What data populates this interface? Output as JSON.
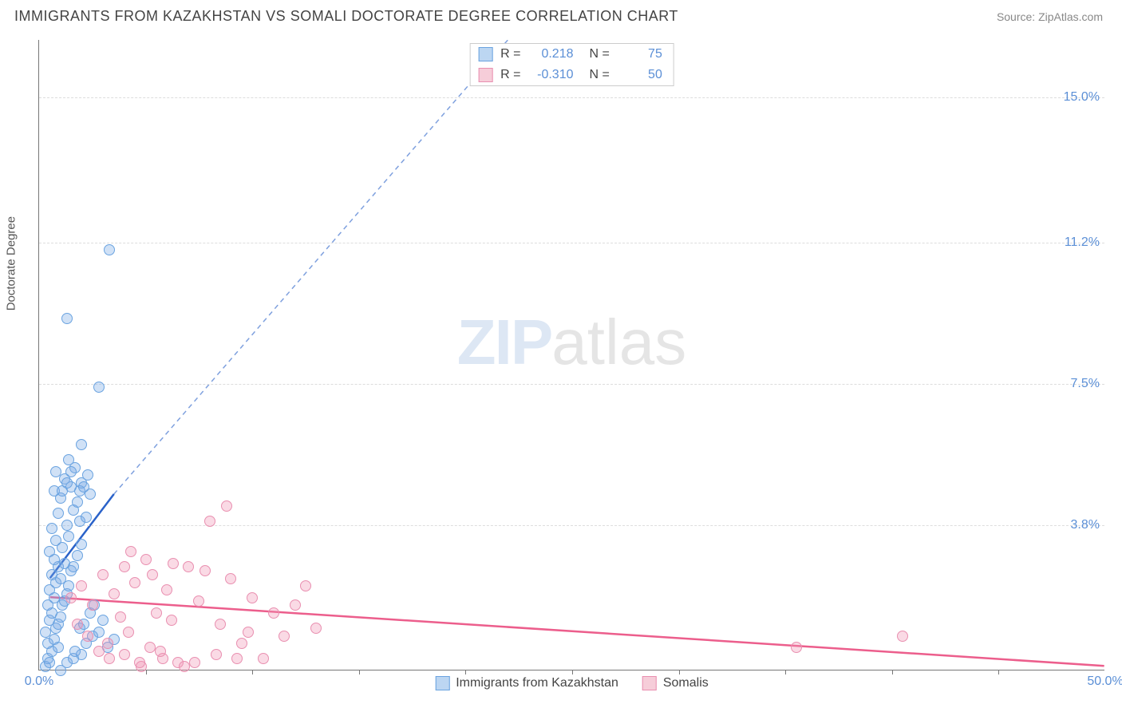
{
  "title": "IMMIGRANTS FROM KAZAKHSTAN VS SOMALI DOCTORATE DEGREE CORRELATION CHART",
  "source": "Source: ZipAtlas.com",
  "ylabel": "Doctorate Degree",
  "watermark_bold": "ZIP",
  "watermark_rest": "atlas",
  "chart": {
    "type": "scatter",
    "background_color": "#ffffff",
    "grid_color": "#dddddd",
    "axis_color": "#777777",
    "xlim": [
      0,
      50
    ],
    "ylim": [
      0,
      16.5
    ],
    "ytick_values": [
      3.8,
      7.5,
      11.2,
      15.0
    ],
    "ytick_labels": [
      "3.8%",
      "7.5%",
      "11.2%",
      "15.0%"
    ],
    "xtick_values": [
      0,
      50
    ],
    "xtick_labels": [
      "0.0%",
      "50.0%"
    ],
    "xtick_marks": [
      5,
      10,
      15,
      20,
      25,
      30,
      35,
      40,
      45
    ],
    "marker_radius": 7,
    "series": [
      {
        "name": "Immigrants from Kazakhstan",
        "color_fill": "rgba(120,170,230,0.35)",
        "color_stroke": "#6aa3e0",
        "swatch_fill": "#bcd6f2",
        "swatch_border": "#6aa3e0",
        "R": "0.218",
        "N": "75",
        "trend": {
          "x1": 0.5,
          "y1": 2.4,
          "x2": 3.5,
          "y2": 4.6,
          "color": "#2a62c9",
          "extend_x": 22,
          "extend_y": 16.5
        },
        "points": [
          [
            0.3,
            0.4
          ],
          [
            0.4,
            0.6
          ],
          [
            0.5,
            0.5
          ],
          [
            0.6,
            0.8
          ],
          [
            0.4,
            1.0
          ],
          [
            0.7,
            1.1
          ],
          [
            0.3,
            1.3
          ],
          [
            0.8,
            1.4
          ],
          [
            0.5,
            1.6
          ],
          [
            0.9,
            1.5
          ],
          [
            0.6,
            1.8
          ],
          [
            1.0,
            1.7
          ],
          [
            0.4,
            2.0
          ],
          [
            1.1,
            2.0
          ],
          [
            0.7,
            2.2
          ],
          [
            1.2,
            2.1
          ],
          [
            0.5,
            2.4
          ],
          [
            1.3,
            2.3
          ],
          [
            0.8,
            2.6
          ],
          [
            1.4,
            2.5
          ],
          [
            0.6,
            2.8
          ],
          [
            1.0,
            2.7
          ],
          [
            0.9,
            3.0
          ],
          [
            1.5,
            2.9
          ],
          [
            0.7,
            3.2
          ],
          [
            1.2,
            3.1
          ],
          [
            1.6,
            3.0
          ],
          [
            0.5,
            3.4
          ],
          [
            1.1,
            3.5
          ],
          [
            1.8,
            3.3
          ],
          [
            0.8,
            3.7
          ],
          [
            1.4,
            3.8
          ],
          [
            2.0,
            3.6
          ],
          [
            0.6,
            4.0
          ],
          [
            1.3,
            4.1
          ],
          [
            1.9,
            4.2
          ],
          [
            0.9,
            4.4
          ],
          [
            1.6,
            4.5
          ],
          [
            2.2,
            4.3
          ],
          [
            1.0,
            4.8
          ],
          [
            1.8,
            4.7
          ],
          [
            0.7,
            5.0
          ],
          [
            1.5,
            5.1
          ],
          [
            2.4,
            4.9
          ],
          [
            1.2,
            5.3
          ],
          [
            2.0,
            5.2
          ],
          [
            0.8,
            5.5
          ],
          [
            1.7,
            5.6
          ],
          [
            2.3,
            5.4
          ],
          [
            1.4,
            5.8
          ],
          [
            1.0,
            0.3
          ],
          [
            1.3,
            0.5
          ],
          [
            1.6,
            0.6
          ],
          [
            2.0,
            0.7
          ],
          [
            2.2,
            1.0
          ],
          [
            2.5,
            1.2
          ],
          [
            1.9,
            1.4
          ],
          [
            2.8,
            1.3
          ],
          [
            2.4,
            1.8
          ],
          [
            3.0,
            1.6
          ],
          [
            0.9,
            0.9
          ],
          [
            1.7,
            0.8
          ],
          [
            2.1,
            1.5
          ],
          [
            2.6,
            2.0
          ],
          [
            3.2,
            0.9
          ],
          [
            3.5,
            1.1
          ],
          [
            1.1,
            5.0
          ],
          [
            1.3,
            5.2
          ],
          [
            1.9,
            5.0
          ],
          [
            2.1,
            5.1
          ],
          [
            2.0,
            6.2
          ],
          [
            2.8,
            7.7
          ],
          [
            3.3,
            11.3
          ],
          [
            1.3,
            9.5
          ],
          [
            1.5,
            5.5
          ]
        ]
      },
      {
        "name": "Somalis",
        "color_fill": "rgba(240,150,180,0.35)",
        "color_stroke": "#e98fb0",
        "swatch_fill": "#f6cdd9",
        "swatch_border": "#e98fb0",
        "R": "-0.310",
        "N": "50",
        "trend": {
          "x1": 0.5,
          "y1": 1.9,
          "x2": 50,
          "y2": 0.1,
          "color": "#ec5e8c"
        },
        "points": [
          [
            1.5,
            2.2
          ],
          [
            2.0,
            2.5
          ],
          [
            2.5,
            2.0
          ],
          [
            3.0,
            2.8
          ],
          [
            3.5,
            2.3
          ],
          [
            4.0,
            3.0
          ],
          [
            4.5,
            2.6
          ],
          [
            5.0,
            3.2
          ],
          [
            5.5,
            1.8
          ],
          [
            6.0,
            2.4
          ],
          [
            6.5,
            0.5
          ],
          [
            7.0,
            3.0
          ],
          [
            7.5,
            2.1
          ],
          [
            8.0,
            4.2
          ],
          [
            8.5,
            1.5
          ],
          [
            9.0,
            2.7
          ],
          [
            9.5,
            1.0
          ],
          [
            10.0,
            2.2
          ],
          [
            10.5,
            0.6
          ],
          [
            11.0,
            1.8
          ],
          [
            11.5,
            1.2
          ],
          [
            12.0,
            2.0
          ],
          [
            12.5,
            2.5
          ],
          [
            13.0,
            1.4
          ],
          [
            1.8,
            1.5
          ],
          [
            2.3,
            1.2
          ],
          [
            3.2,
            1.0
          ],
          [
            4.2,
            1.3
          ],
          [
            5.2,
            0.9
          ],
          [
            6.2,
            1.6
          ],
          [
            4.8,
            0.4
          ],
          [
            5.8,
            0.6
          ],
          [
            7.3,
            0.5
          ],
          [
            8.3,
            0.7
          ],
          [
            6.8,
            0.4
          ],
          [
            9.3,
            0.6
          ],
          [
            4.3,
            3.4
          ],
          [
            3.8,
            1.7
          ],
          [
            5.3,
            2.8
          ],
          [
            7.8,
            2.9
          ],
          [
            2.8,
            0.8
          ],
          [
            3.3,
            0.6
          ],
          [
            4.7,
            0.5
          ],
          [
            5.7,
            0.8
          ],
          [
            8.8,
            4.6
          ],
          [
            35.5,
            0.9
          ],
          [
            40.5,
            1.2
          ],
          [
            6.3,
            3.1
          ],
          [
            4.0,
            0.7
          ],
          [
            9.8,
            1.3
          ]
        ]
      }
    ]
  },
  "legend_top_labels": {
    "R": "R  =",
    "N": "N  ="
  }
}
